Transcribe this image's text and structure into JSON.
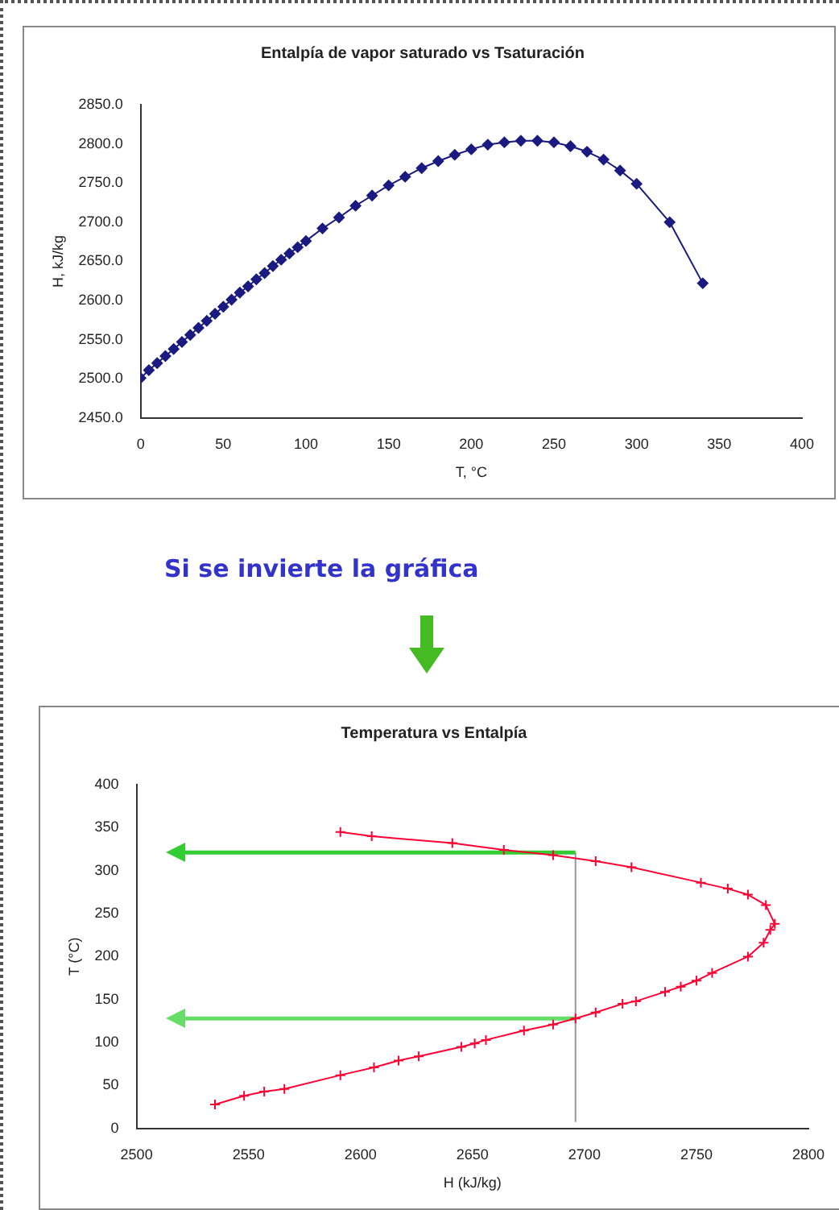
{
  "chart_data": [
    {
      "type": "line",
      "title": "Entalpía de vapor saturado vs Tsaturación",
      "xlabel": "T, °C",
      "ylabel": "H, kJ/kg",
      "x": [
        0,
        5,
        10,
        15,
        20,
        25,
        30,
        35,
        40,
        45,
        50,
        55,
        60,
        65,
        70,
        75,
        80,
        85,
        90,
        95,
        100,
        110,
        120,
        130,
        140,
        150,
        160,
        170,
        180,
        190,
        200,
        210,
        220,
        230,
        240,
        250,
        260,
        270,
        280,
        290,
        300,
        320,
        340
      ],
      "series": [
        {
          "color": "#1a1a80",
          "values": [
            2501,
            2511,
            2520,
            2529,
            2538,
            2547,
            2556,
            2565,
            2574,
            2583,
            2592,
            2601,
            2610,
            2618,
            2627,
            2635,
            2644,
            2652,
            2660,
            2668,
            2676,
            2692,
            2706,
            2721,
            2734,
            2747,
            2758,
            2769,
            2778,
            2786,
            2793,
            2799,
            2802,
            2804,
            2804,
            2802,
            2797,
            2790,
            2780,
            2766,
            2749,
            2700,
            2622
          ]
        }
      ],
      "xlim": [
        0,
        400
      ],
      "xticks": [
        0,
        50,
        100,
        150,
        200,
        250,
        300,
        350,
        400
      ],
      "ylim": [
        2450,
        2850
      ],
      "yticks": [
        {
          "value": 2450,
          "label": "2450.0"
        },
        {
          "value": 2500,
          "label": "2500.0"
        },
        {
          "value": 2550,
          "label": "2550.0"
        },
        {
          "value": 2600,
          "label": "2600.0"
        },
        {
          "value": 2650,
          "label": "2650.0"
        },
        {
          "value": 2700,
          "label": "2700.0"
        },
        {
          "value": 2750,
          "label": "2750.0"
        },
        {
          "value": 2800,
          "label": "2800.0"
        },
        {
          "value": 2850,
          "label": "2850.0"
        }
      ],
      "grid": false,
      "legend": false,
      "marker": "diamond",
      "line_style": "solid"
    },
    {
      "type": "line",
      "title": "Temperatura vs Entalpía",
      "xlabel": "H (kJ/kg)",
      "ylabel": "T (°C)",
      "annotations": [
        "Si se invierte la gráfica"
      ],
      "x": [
        2535,
        2548,
        2557,
        2566,
        2591,
        2606,
        2617,
        2626,
        2645,
        2651,
        2656,
        2673,
        2686,
        2696,
        2705,
        2717,
        2723,
        2736,
        2743,
        2750,
        2757,
        2773,
        2780,
        2783,
        2785,
        2781,
        2773,
        2764,
        2752,
        2721,
        2705,
        2686,
        2664,
        2641,
        2605,
        2591
      ],
      "series": [
        {
          "color": "#ff0033",
          "values": [
            28,
            38,
            43,
            46,
            62,
            71,
            79,
            84,
            95,
            99,
            103,
            114,
            121,
            128,
            135,
            145,
            148,
            159,
            165,
            172,
            181,
            200,
            216,
            231,
            238,
            260,
            272,
            279,
            286,
            304,
            311,
            318,
            324,
            332,
            340,
            345
          ]
        }
      ],
      "xlim": [
        2500,
        2800
      ],
      "xticks": [
        2500,
        2550,
        2600,
        2650,
        2700,
        2750,
        2800
      ],
      "ylim": [
        0,
        400
      ],
      "yticks": [
        0,
        50,
        100,
        150,
        200,
        250,
        300,
        350,
        400
      ],
      "ref_lines": [
        {
          "axis": "x",
          "value": 2696,
          "color": "#999999"
        },
        {
          "axis": "y",
          "value": 321,
          "color": "#33cc33"
        },
        {
          "axis": "y",
          "value": 128,
          "color": "#66dd66"
        }
      ],
      "grid": false,
      "legend": false,
      "marker": "cross",
      "line_style": "solid"
    }
  ]
}
